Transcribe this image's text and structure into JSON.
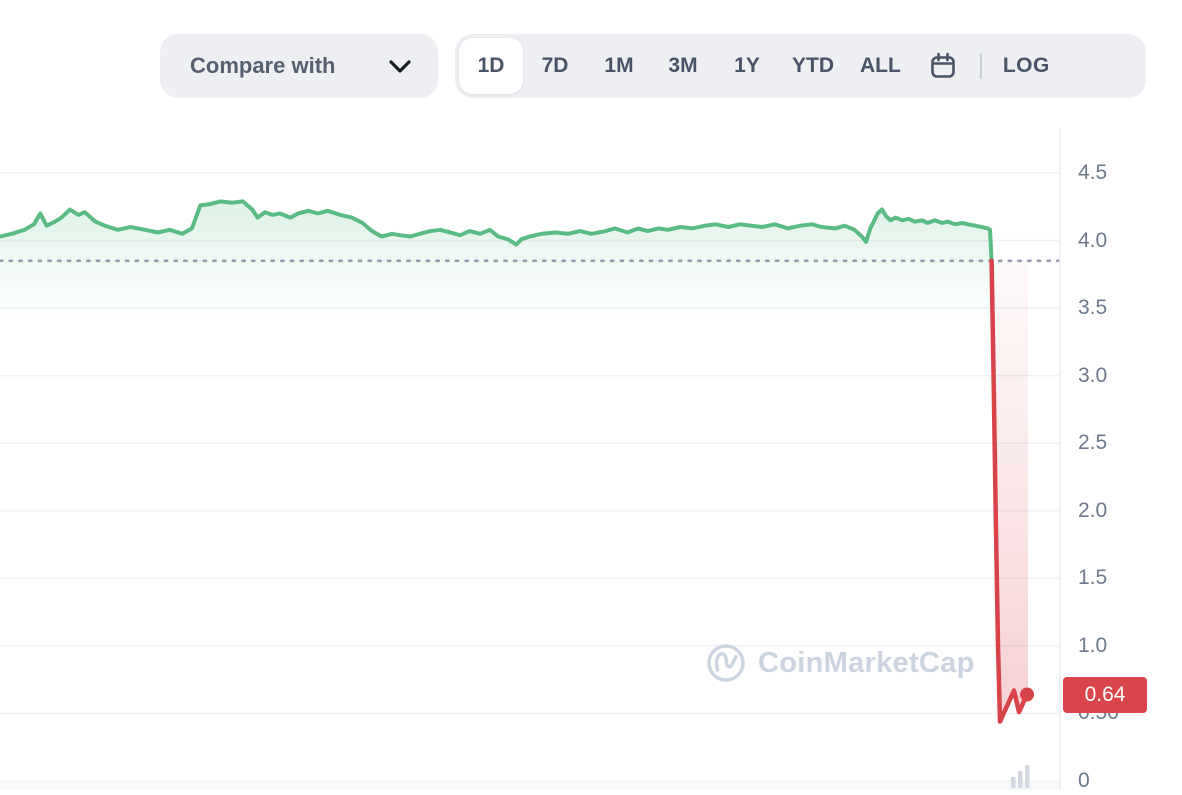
{
  "toolbar": {
    "compare_with_label": "Compare with",
    "ranges": [
      {
        "label": "1D",
        "active": true
      },
      {
        "label": "7D",
        "active": false
      },
      {
        "label": "1M",
        "active": false
      },
      {
        "label": "3M",
        "active": false
      },
      {
        "label": "1Y",
        "active": false
      },
      {
        "label": "YTD",
        "active": false
      },
      {
        "label": "ALL",
        "active": false
      }
    ],
    "calendar_icon": "calendar-icon",
    "log_label": "LOG"
  },
  "watermark": {
    "text": "CoinMarketCap",
    "logo_icon": "coinmarketcap-logo-icon",
    "color": "#ccd4e1"
  },
  "price_badge": {
    "value": "0.64",
    "color": "#d8464b"
  },
  "volume_icon": "volume-bars-icon",
  "colors": {
    "up_line": "#5abc84",
    "up_fill": "#57bd85",
    "down_line": "#d8434a",
    "down_fill": "#d8434a",
    "grid": "#f0f2f5",
    "dotted_reference": "#939db0",
    "axis_line": "#eceef2",
    "tick_text": "#6e798c",
    "toolbar_bg": "#edeff3",
    "toolbar_text": "#4a5468"
  },
  "chart_data": {
    "type": "line",
    "title": "",
    "xlabel": "",
    "ylabel": "",
    "x_unit": "fraction_of_visible_day",
    "ylim": [
      0,
      4.8
    ],
    "grid": true,
    "legend": false,
    "previous_close": 3.85,
    "current_price": 0.64,
    "y_ticks": [
      {
        "label": "4.5",
        "value": 4.5
      },
      {
        "label": "4.0",
        "value": 4.0
      },
      {
        "label": "3.5",
        "value": 3.5
      },
      {
        "label": "3.0",
        "value": 3.0
      },
      {
        "label": "2.5",
        "value": 2.5
      },
      {
        "label": "2.0",
        "value": 2.0
      },
      {
        "label": "1.5",
        "value": 1.5
      },
      {
        "label": "1.0",
        "value": 1.0
      },
      {
        "label": "0.50",
        "value": 0.5
      },
      {
        "label": "0",
        "value": 0
      }
    ],
    "series": [
      {
        "name": "price-above-previous-close",
        "direction": "up",
        "points": [
          [
            0.0,
            4.03
          ],
          [
            0.011,
            4.05
          ],
          [
            0.023,
            4.08
          ],
          [
            0.032,
            4.12
          ],
          [
            0.038,
            4.2
          ],
          [
            0.044,
            4.11
          ],
          [
            0.052,
            4.14
          ],
          [
            0.058,
            4.17
          ],
          [
            0.066,
            4.23
          ],
          [
            0.074,
            4.19
          ],
          [
            0.08,
            4.21
          ],
          [
            0.09,
            4.14
          ],
          [
            0.099,
            4.11
          ],
          [
            0.111,
            4.08
          ],
          [
            0.123,
            4.1
          ],
          [
            0.137,
            4.08
          ],
          [
            0.149,
            4.06
          ],
          [
            0.16,
            4.08
          ],
          [
            0.172,
            4.05
          ],
          [
            0.181,
            4.09
          ],
          [
            0.189,
            4.26
          ],
          [
            0.198,
            4.27
          ],
          [
            0.208,
            4.29
          ],
          [
            0.219,
            4.28
          ],
          [
            0.229,
            4.29
          ],
          [
            0.238,
            4.23
          ],
          [
            0.243,
            4.17
          ],
          [
            0.25,
            4.21
          ],
          [
            0.257,
            4.19
          ],
          [
            0.264,
            4.2
          ],
          [
            0.274,
            4.17
          ],
          [
            0.281,
            4.2
          ],
          [
            0.291,
            4.22
          ],
          [
            0.3,
            4.2
          ],
          [
            0.309,
            4.22
          ],
          [
            0.321,
            4.19
          ],
          [
            0.332,
            4.17
          ],
          [
            0.342,
            4.13
          ],
          [
            0.351,
            4.07
          ],
          [
            0.36,
            4.03
          ],
          [
            0.37,
            4.05
          ],
          [
            0.377,
            4.04
          ],
          [
            0.387,
            4.03
          ],
          [
            0.396,
            4.05
          ],
          [
            0.406,
            4.07
          ],
          [
            0.415,
            4.08
          ],
          [
            0.425,
            4.06
          ],
          [
            0.434,
            4.04
          ],
          [
            0.443,
            4.07
          ],
          [
            0.453,
            4.05
          ],
          [
            0.462,
            4.08
          ],
          [
            0.47,
            4.03
          ],
          [
            0.479,
            4.01
          ],
          [
            0.487,
            3.97
          ],
          [
            0.492,
            4.01
          ],
          [
            0.5,
            4.03
          ],
          [
            0.511,
            4.05
          ],
          [
            0.524,
            4.06
          ],
          [
            0.536,
            4.05
          ],
          [
            0.547,
            4.07
          ],
          [
            0.558,
            4.05
          ],
          [
            0.571,
            4.07
          ],
          [
            0.58,
            4.09
          ],
          [
            0.592,
            4.06
          ],
          [
            0.602,
            4.09
          ],
          [
            0.611,
            4.07
          ],
          [
            0.621,
            4.09
          ],
          [
            0.63,
            4.08
          ],
          [
            0.642,
            4.1
          ],
          [
            0.653,
            4.09
          ],
          [
            0.665,
            4.11
          ],
          [
            0.675,
            4.12
          ],
          [
            0.687,
            4.1
          ],
          [
            0.698,
            4.12
          ],
          [
            0.709,
            4.11
          ],
          [
            0.719,
            4.1
          ],
          [
            0.731,
            4.12
          ],
          [
            0.743,
            4.09
          ],
          [
            0.755,
            4.11
          ],
          [
            0.766,
            4.12
          ],
          [
            0.775,
            4.1
          ],
          [
            0.788,
            4.09
          ],
          [
            0.797,
            4.11
          ],
          [
            0.806,
            4.08
          ],
          [
            0.813,
            4.03
          ],
          [
            0.817,
            3.99
          ],
          [
            0.821,
            4.09
          ],
          [
            0.828,
            4.2
          ],
          [
            0.832,
            4.23
          ],
          [
            0.836,
            4.18
          ],
          [
            0.84,
            4.15
          ],
          [
            0.845,
            4.17
          ],
          [
            0.851,
            4.15
          ],
          [
            0.857,
            4.16
          ],
          [
            0.863,
            4.14
          ],
          [
            0.87,
            4.15
          ],
          [
            0.875,
            4.13
          ],
          [
            0.882,
            4.15
          ],
          [
            0.889,
            4.13
          ],
          [
            0.894,
            4.14
          ],
          [
            0.901,
            4.12
          ],
          [
            0.908,
            4.13
          ],
          [
            0.913,
            4.12
          ],
          [
            0.92,
            4.11
          ],
          [
            0.926,
            4.1
          ],
          [
            0.932,
            4.09
          ],
          [
            0.934,
            4.08
          ],
          [
            0.9355,
            3.85
          ]
        ]
      },
      {
        "name": "price-below-previous-close",
        "direction": "down",
        "points": [
          [
            0.9355,
            3.85
          ],
          [
            0.9375,
            2.9
          ],
          [
            0.9395,
            1.9
          ],
          [
            0.9415,
            1.0
          ],
          [
            0.9434,
            0.44
          ],
          [
            0.9566,
            0.67
          ],
          [
            0.9613,
            0.51
          ],
          [
            0.9689,
            0.64
          ]
        ]
      }
    ],
    "end_point": {
      "t": 0.9689,
      "price": 0.64
    },
    "down_fill_right_t": 0.9698
  }
}
